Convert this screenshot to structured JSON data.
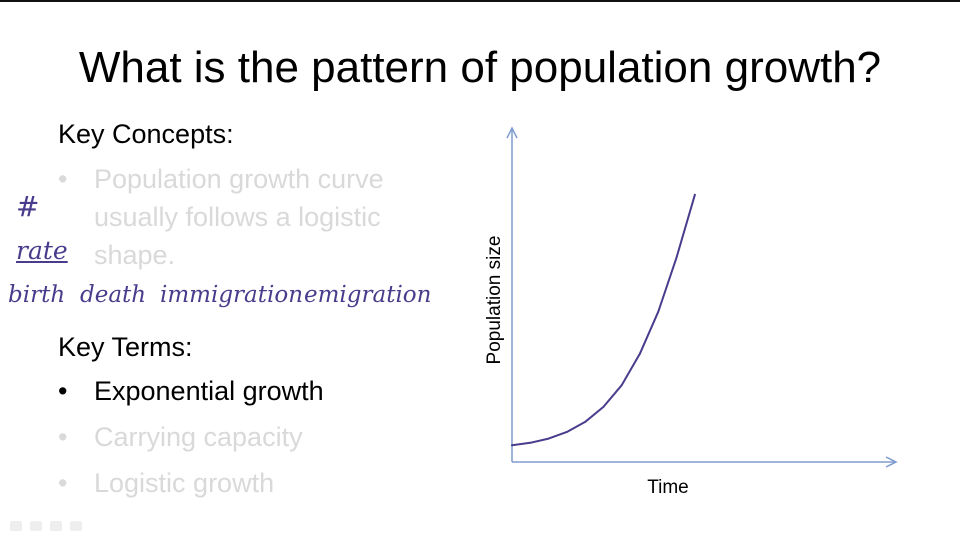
{
  "slide": {
    "title": "What is the pattern of population growth?"
  },
  "key_concepts": {
    "heading": "Key Concepts:",
    "items": [
      "Population growth curve usually follows a logistic shape."
    ]
  },
  "key_terms": {
    "heading": "Key Terms:",
    "items": [
      {
        "label": "Exponential growth",
        "highlighted": true
      },
      {
        "label": "Carrying capacity",
        "highlighted": false
      },
      {
        "label": "Logistic growth",
        "highlighted": false
      }
    ]
  },
  "bullet_symbol": "•",
  "annotations": {
    "hash": "#",
    "rate": "rate",
    "factors": [
      "birth",
      "death",
      "immigration",
      "emigration"
    ]
  },
  "colors": {
    "ink": "#4a3c8c",
    "axis": "#7f9ccf",
    "faded_text": "#d9d9d9"
  },
  "chart_data": {
    "type": "line",
    "xlabel": "Time",
    "ylabel": "Population size",
    "x": [
      0,
      1,
      2,
      3,
      4,
      5,
      6,
      7,
      8,
      9,
      10
    ],
    "series": [
      {
        "values": [
          2.0,
          2.3,
          2.8,
          3.6,
          4.8,
          6.6,
          9.2,
          13.0,
          18.0,
          24.5,
          32.0
        ]
      }
    ],
    "xlim": [
      0,
      21
    ],
    "ylim": [
      0,
      40
    ],
    "grid": false,
    "legend": "none"
  },
  "toolbar": {
    "icons": [
      "pen-icon",
      "highlighter-icon",
      "eraser-icon",
      "undo-icon"
    ]
  }
}
